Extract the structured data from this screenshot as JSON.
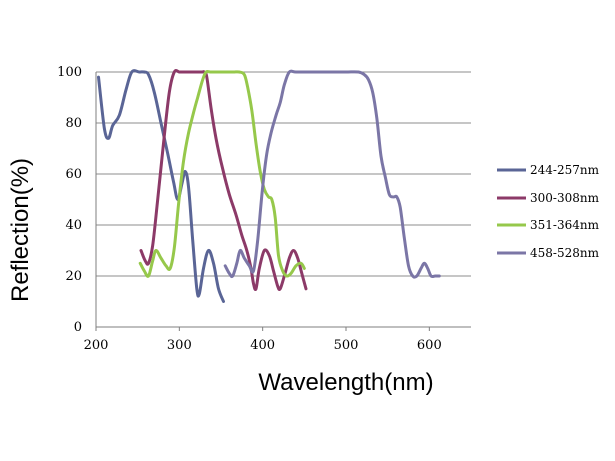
{
  "chart_data": {
    "type": "line",
    "xlabel": "Wavelength(nm)",
    "ylabel": "Reflection(%)",
    "xlim": [
      200,
      650
    ],
    "ylim": [
      0,
      100
    ],
    "xticks": [
      "200",
      "300",
      "400",
      "500",
      "600"
    ],
    "yticks": [
      "0",
      "20",
      "40",
      "60",
      "80",
      "100"
    ],
    "grid": "horizontal",
    "legend_position": "right",
    "series": [
      {
        "name": "244-257nm",
        "color": "#5a6596",
        "points": [
          [
            203,
            98
          ],
          [
            210,
            78
          ],
          [
            215,
            74
          ],
          [
            220,
            79
          ],
          [
            228,
            83
          ],
          [
            236,
            93
          ],
          [
            243,
            100
          ],
          [
            252,
            100
          ],
          [
            258,
            100
          ],
          [
            263,
            99
          ],
          [
            270,
            92
          ],
          [
            278,
            80
          ],
          [
            286,
            68
          ],
          [
            293,
            57
          ],
          [
            298,
            50
          ],
          [
            303,
            56
          ],
          [
            307,
            61
          ],
          [
            311,
            55
          ],
          [
            316,
            34
          ],
          [
            321,
            15
          ],
          [
            324,
            13
          ],
          [
            329,
            23
          ],
          [
            335,
            30
          ],
          [
            341,
            25
          ],
          [
            347,
            15
          ],
          [
            353,
            10
          ]
        ]
      },
      {
        "name": "300-308nm",
        "color": "#8c3a68",
        "points": [
          [
            254,
            30
          ],
          [
            259,
            26
          ],
          [
            263,
            25
          ],
          [
            268,
            32
          ],
          [
            274,
            50
          ],
          [
            281,
            72
          ],
          [
            288,
            92
          ],
          [
            294,
            100
          ],
          [
            300,
            100
          ],
          [
            306,
            100
          ],
          [
            312,
            100
          ],
          [
            320,
            100
          ],
          [
            327,
            100
          ],
          [
            330,
            100
          ],
          [
            333,
            98
          ],
          [
            338,
            86
          ],
          [
            344,
            74
          ],
          [
            352,
            62
          ],
          [
            360,
            52
          ],
          [
            368,
            44
          ],
          [
            375,
            36
          ],
          [
            381,
            30
          ],
          [
            386,
            23
          ],
          [
            389,
            17
          ],
          [
            392,
            15
          ],
          [
            396,
            23
          ],
          [
            402,
            30
          ],
          [
            408,
            28
          ],
          [
            413,
            22
          ],
          [
            418,
            16
          ],
          [
            421,
            15
          ],
          [
            426,
            20
          ],
          [
            432,
            27
          ],
          [
            437,
            30
          ],
          [
            442,
            27
          ],
          [
            447,
            21
          ],
          [
            452,
            15
          ]
        ]
      },
      {
        "name": "351-364nm",
        "color": "#96c84b",
        "points": [
          [
            253,
            25
          ],
          [
            258,
            22
          ],
          [
            263,
            20
          ],
          [
            268,
            26
          ],
          [
            272,
            30
          ],
          [
            278,
            27
          ],
          [
            284,
            24
          ],
          [
            289,
            23
          ],
          [
            294,
            31
          ],
          [
            299,
            48
          ],
          [
            305,
            65
          ],
          [
            311,
            76
          ],
          [
            317,
            84
          ],
          [
            322,
            90
          ],
          [
            328,
            97
          ],
          [
            332,
            100
          ],
          [
            337,
            100
          ],
          [
            343,
            100
          ],
          [
            355,
            100
          ],
          [
            365,
            100
          ],
          [
            372,
            100
          ],
          [
            378,
            99
          ],
          [
            382,
            94
          ],
          [
            387,
            85
          ],
          [
            392,
            72
          ],
          [
            397,
            61
          ],
          [
            402,
            54
          ],
          [
            407,
            51
          ],
          [
            411,
            50
          ],
          [
            415,
            43
          ],
          [
            419,
            28
          ],
          [
            424,
            22
          ],
          [
            429,
            20
          ],
          [
            434,
            21
          ],
          [
            440,
            24
          ],
          [
            446,
            25
          ],
          [
            450,
            23
          ]
        ]
      },
      {
        "name": "458-528nm",
        "color": "#7b76a6",
        "points": [
          [
            355,
            24
          ],
          [
            360,
            21
          ],
          [
            364,
            20
          ],
          [
            369,
            25
          ],
          [
            373,
            30
          ],
          [
            378,
            27
          ],
          [
            384,
            24
          ],
          [
            389,
            22
          ],
          [
            394,
            34
          ],
          [
            400,
            55
          ],
          [
            405,
            68
          ],
          [
            410,
            76
          ],
          [
            416,
            83
          ],
          [
            421,
            88
          ],
          [
            426,
            95
          ],
          [
            432,
            100
          ],
          [
            440,
            100
          ],
          [
            460,
            100
          ],
          [
            480,
            100
          ],
          [
            500,
            100
          ],
          [
            515,
            100
          ],
          [
            522,
            99
          ],
          [
            527,
            97
          ],
          [
            532,
            92
          ],
          [
            537,
            82
          ],
          [
            542,
            67
          ],
          [
            547,
            59
          ],
          [
            552,
            52
          ],
          [
            557,
            51
          ],
          [
            561,
            51
          ],
          [
            565,
            47
          ],
          [
            570,
            35
          ],
          [
            575,
            24
          ],
          [
            580,
            20
          ],
          [
            585,
            20
          ],
          [
            590,
            23
          ],
          [
            594,
            25
          ],
          [
            598,
            23
          ],
          [
            602,
            20
          ],
          [
            607,
            20
          ],
          [
            612,
            20
          ]
        ]
      }
    ]
  }
}
